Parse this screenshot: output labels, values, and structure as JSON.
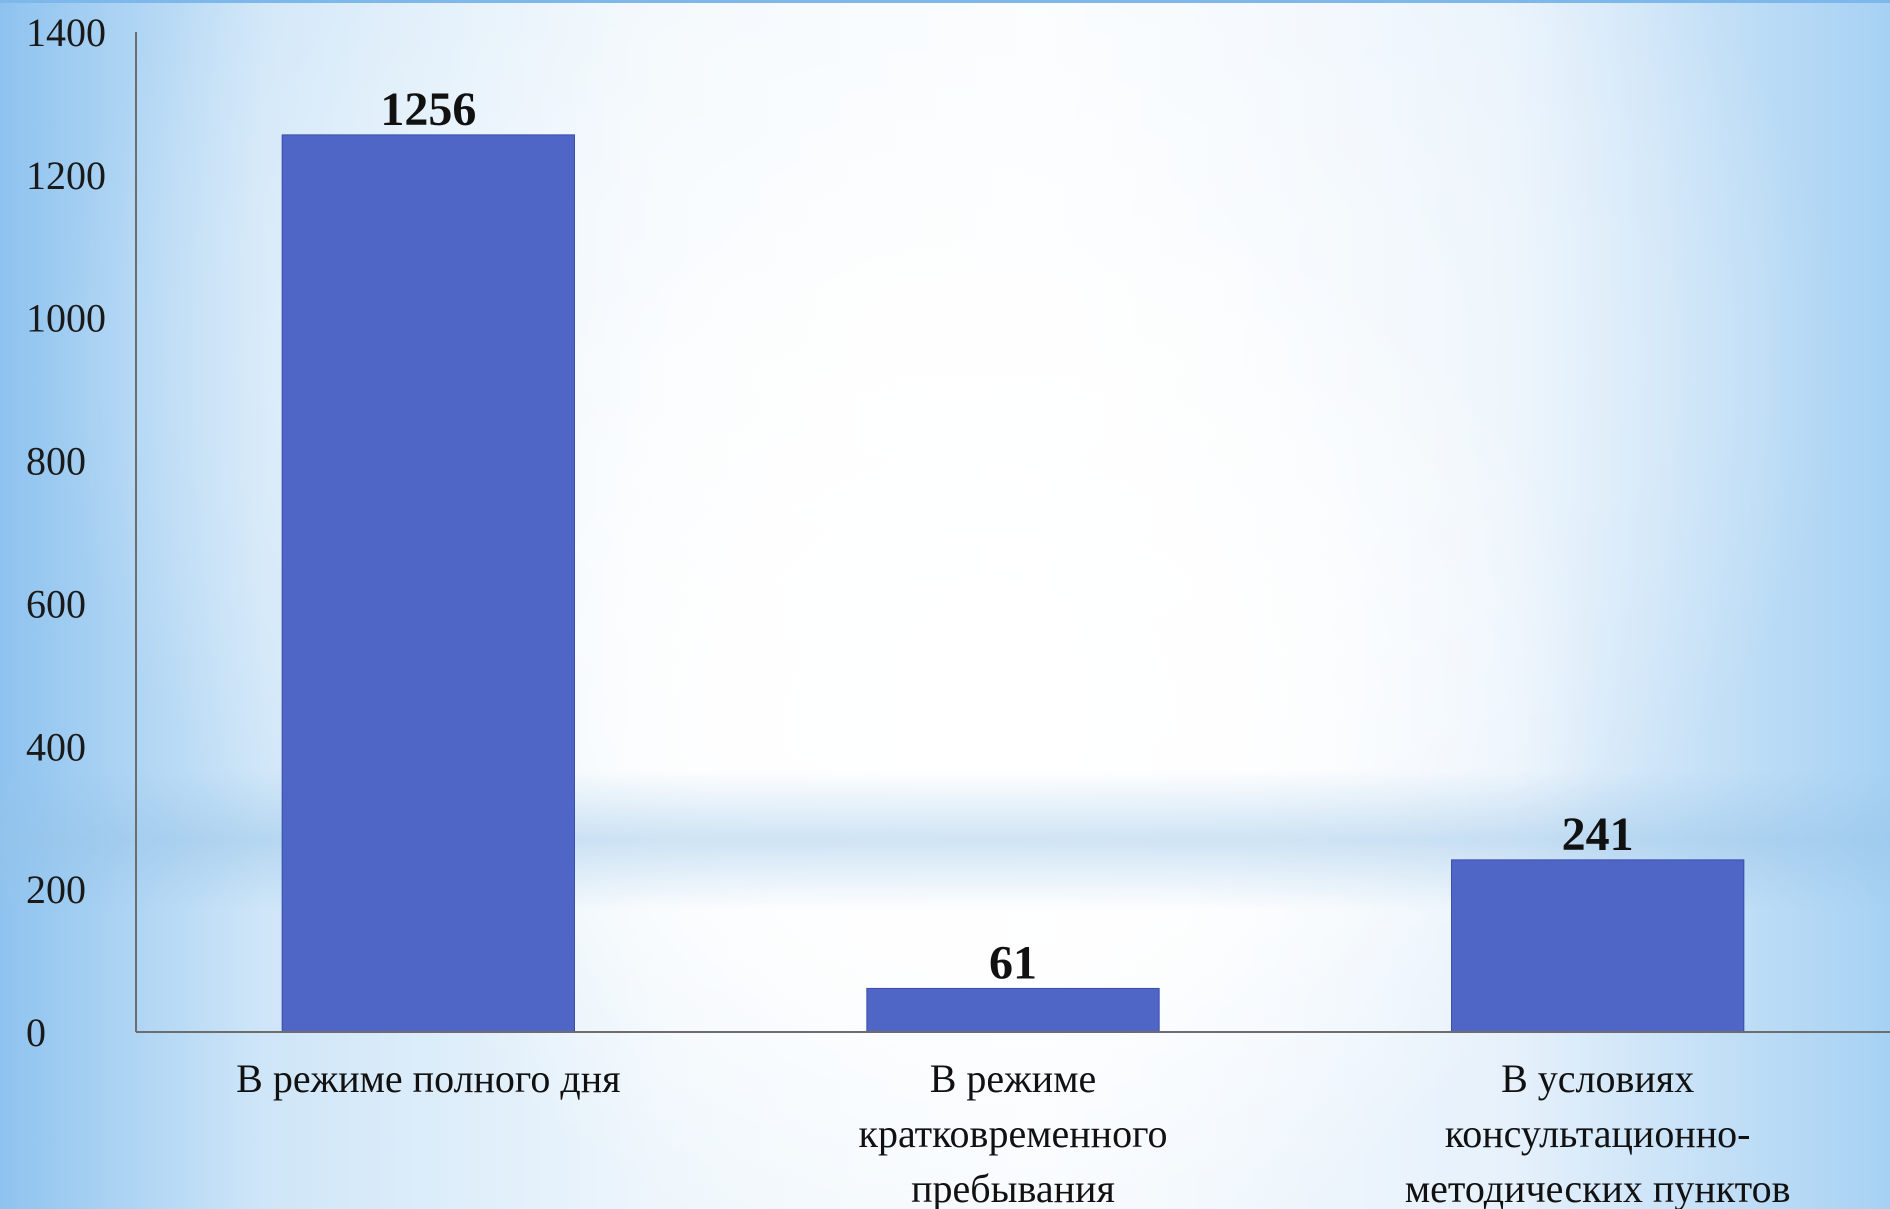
{
  "chart_data": {
    "type": "bar",
    "categories": [
      [
        "В режиме полного дня"
      ],
      [
        "В режиме",
        "кратковременного",
        "пребывания"
      ],
      [
        "В условиях",
        "консультационно-",
        "методических пунктов"
      ]
    ],
    "values": [
      1256,
      61,
      241
    ],
    "data_labels": [
      "1256",
      "61",
      "241"
    ],
    "y_ticks": [
      "0",
      "200",
      "400",
      "600",
      "800",
      "1000",
      "1200",
      "1400"
    ],
    "ylim": [
      0,
      1400
    ],
    "title": "",
    "xlabel": "",
    "ylabel": "",
    "grid": false,
    "bar_color": "#4f66c6",
    "axis_color": "#6d6d6d"
  }
}
